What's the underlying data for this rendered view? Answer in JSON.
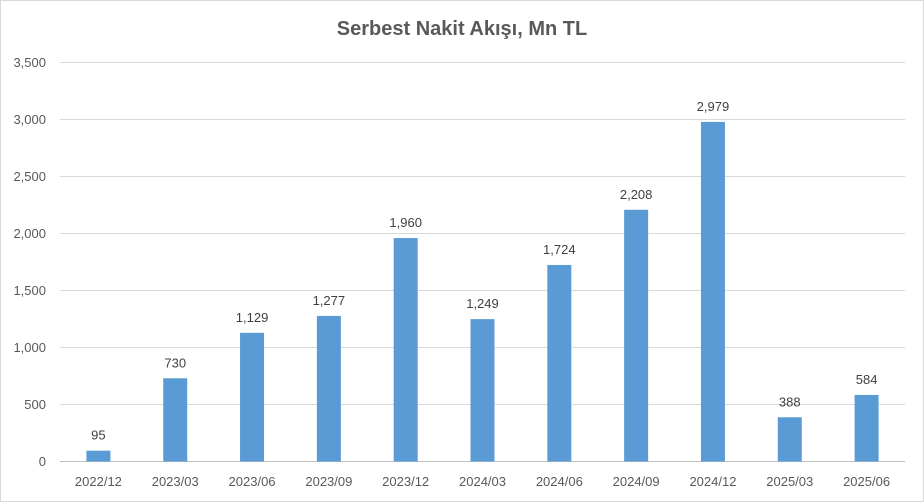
{
  "chart_data": {
    "type": "bar",
    "title": "Serbest Nakit Akışı, Mn TL",
    "categories": [
      "2022/12",
      "2023/03",
      "2023/06",
      "2023/09",
      "2023/12",
      "2024/03",
      "2024/06",
      "2024/09",
      "2024/12",
      "2025/03",
      "2025/06"
    ],
    "values": [
      95,
      730,
      1129,
      1277,
      1960,
      1249,
      1724,
      2208,
      2979,
      388,
      584
    ],
    "value_labels": [
      "95",
      "730",
      "1,129",
      "1,277",
      "1,960",
      "1,249",
      "1,724",
      "2,208",
      "2,979",
      "388",
      "584"
    ],
    "yticks": [
      0,
      500,
      1000,
      1500,
      2000,
      2500,
      3000,
      3500
    ],
    "ytick_labels": [
      "0",
      "500",
      "1,000",
      "1,500",
      "2,000",
      "2,500",
      "3,000",
      "3,500"
    ],
    "ylim": [
      0,
      3500
    ],
    "xlabel": "",
    "ylabel": "",
    "grid": true,
    "legend": "none",
    "bar_color": "#5b9bd5",
    "grid_color": "#d9d9d9"
  }
}
